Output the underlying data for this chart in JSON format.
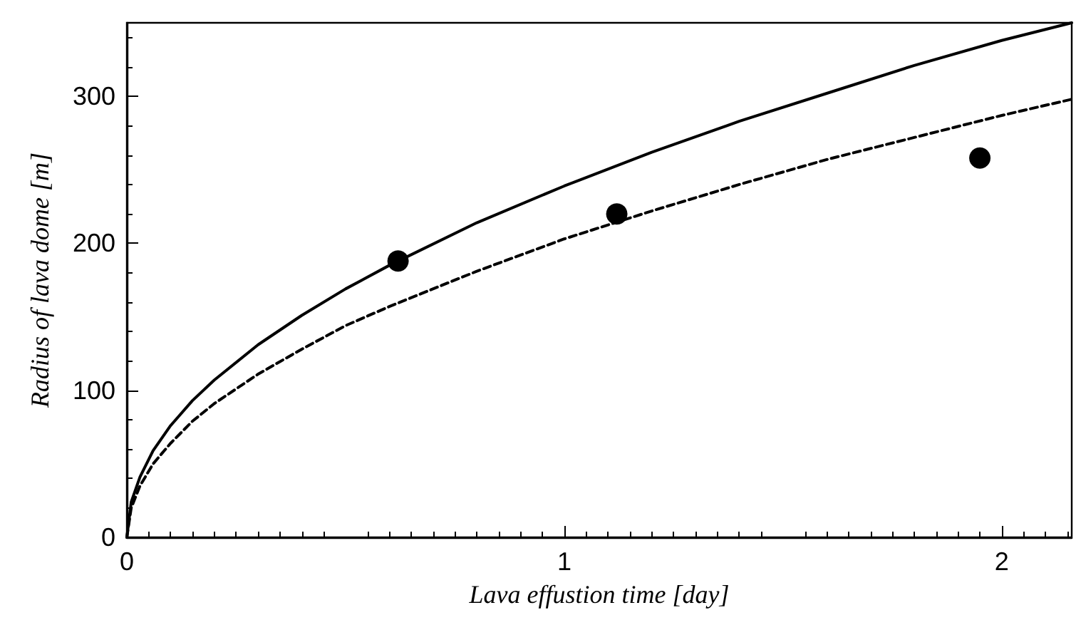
{
  "chart_data": {
    "type": "line",
    "xlabel": "Lava effustion time [day]",
    "ylabel": "Radius of lava dome [m]",
    "xlim": [
      0,
      2.16
    ],
    "xticks": [
      0,
      1,
      2
    ],
    "ylim": [
      0,
      350
    ],
    "yticks": [
      0,
      100,
      200,
      300
    ],
    "grid": false,
    "series": [
      {
        "type": "line",
        "color": "#000000",
        "line_style": "solid",
        "marker": "none",
        "x": [
          0,
          0.01,
          0.03,
          0.06,
          0.1,
          0.15,
          0.2,
          0.3,
          0.4,
          0.5,
          0.6,
          0.8,
          1.0,
          1.2,
          1.4,
          1.6,
          1.8,
          2.0,
          2.16
        ],
        "values": [
          0,
          24,
          41,
          59,
          76,
          93,
          107,
          131,
          151,
          169,
          185,
          214,
          239,
          262,
          283,
          302,
          321,
          338,
          350
        ]
      },
      {
        "type": "line",
        "color": "#000000",
        "line_style": "dashed",
        "marker": "none",
        "x": [
          0,
          0.01,
          0.03,
          0.06,
          0.1,
          0.15,
          0.2,
          0.3,
          0.4,
          0.5,
          0.6,
          0.8,
          1.0,
          1.2,
          1.4,
          1.6,
          1.8,
          2.0,
          2.16
        ],
        "values": [
          0,
          20,
          35,
          50,
          64,
          79,
          91,
          111,
          128,
          144,
          157,
          181,
          203,
          222,
          240,
          257,
          272,
          287,
          298
        ]
      },
      {
        "type": "scatter",
        "color": "#000000",
        "marker": "circle",
        "x": [
          0.62,
          1.12,
          1.95
        ],
        "values": [
          188,
          220,
          258
        ]
      }
    ]
  }
}
